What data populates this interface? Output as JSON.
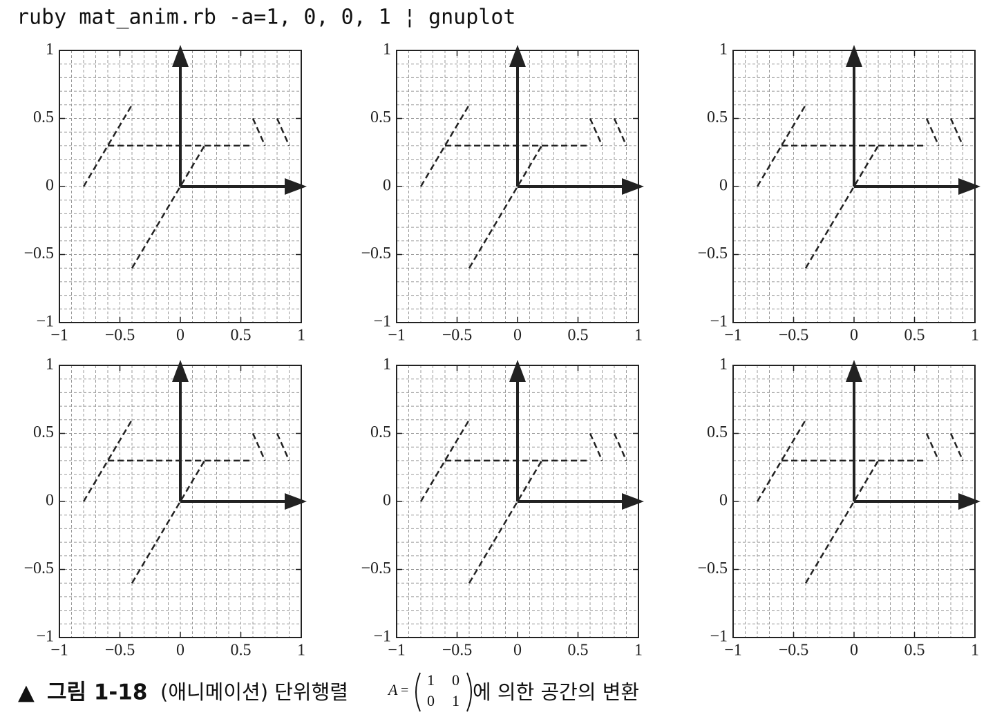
{
  "header": {
    "command": "ruby mat_anim.rb -a=1, 0, 0, 1 ¦ gnuplot"
  },
  "chart_data": [
    {
      "type": "line",
      "xlim": [
        -1,
        1
      ],
      "ylim": [
        -1,
        1
      ],
      "grid": true,
      "minor_step": 0.1,
      "color": "#222222",
      "xticks": [
        {
          "value": -1,
          "label": "−1"
        },
        {
          "value": -0.5,
          "label": "−0.5"
        },
        0,
        0.5,
        1
      ],
      "yticks": [
        {
          "value": -1,
          "label": "−1"
        },
        {
          "value": -0.5,
          "label": "−0.5"
        },
        0,
        0.5,
        1
      ],
      "series": [
        {
          "style": "dashed",
          "x": [
            -0.8,
            -0.4
          ],
          "values": [
            0,
            0.6
          ]
        },
        {
          "style": "dashed",
          "x": [
            -0.6,
            0.6
          ],
          "values": [
            0.3,
            0.3
          ]
        },
        {
          "style": "dashed",
          "x": [
            -0.4,
            0.2
          ],
          "values": [
            -0.6,
            0.3
          ]
        },
        {
          "style": "dashed",
          "x": [
            0.6,
            0.7
          ],
          "values": [
            0.5,
            0.3
          ]
        },
        {
          "style": "dashed",
          "x": [
            0.8,
            0.9
          ],
          "values": [
            0.5,
            0.3
          ]
        },
        {
          "style": "arrow",
          "x": [
            0,
            1
          ],
          "values": [
            0,
            0
          ]
        },
        {
          "style": "arrow",
          "x": [
            0,
            0
          ],
          "values": [
            0,
            1
          ]
        }
      ]
    },
    {
      "type": "line",
      "xlim": [
        -1,
        1
      ],
      "ylim": [
        -1,
        1
      ],
      "grid": true,
      "minor_step": 0.1,
      "color": "#222222",
      "xticks": [
        {
          "value": -1,
          "label": "−1"
        },
        {
          "value": -0.5,
          "label": "−0.5"
        },
        0,
        0.5,
        1
      ],
      "yticks": [
        {
          "value": -1,
          "label": "−1"
        },
        {
          "value": -0.5,
          "label": "−0.5"
        },
        0,
        0.5,
        1
      ],
      "series": [
        {
          "style": "dashed",
          "x": [
            -0.8,
            -0.4
          ],
          "values": [
            0,
            0.6
          ]
        },
        {
          "style": "dashed",
          "x": [
            -0.6,
            0.6
          ],
          "values": [
            0.3,
            0.3
          ]
        },
        {
          "style": "dashed",
          "x": [
            -0.4,
            0.2
          ],
          "values": [
            -0.6,
            0.3
          ]
        },
        {
          "style": "dashed",
          "x": [
            0.6,
            0.7
          ],
          "values": [
            0.5,
            0.3
          ]
        },
        {
          "style": "dashed",
          "x": [
            0.8,
            0.9
          ],
          "values": [
            0.5,
            0.3
          ]
        },
        {
          "style": "arrow",
          "x": [
            0,
            1
          ],
          "values": [
            0,
            0
          ]
        },
        {
          "style": "arrow",
          "x": [
            0,
            0
          ],
          "values": [
            0,
            1
          ]
        }
      ]
    },
    {
      "type": "line",
      "xlim": [
        -1,
        1
      ],
      "ylim": [
        -1,
        1
      ],
      "grid": true,
      "minor_step": 0.1,
      "color": "#222222",
      "xticks": [
        {
          "value": -1,
          "label": "−1"
        },
        {
          "value": -0.5,
          "label": "−0.5"
        },
        0,
        0.5,
        1
      ],
      "yticks": [
        {
          "value": -1,
          "label": "−1"
        },
        {
          "value": -0.5,
          "label": "−0.5"
        },
        0,
        0.5,
        1
      ],
      "series": [
        {
          "style": "dashed",
          "x": [
            -0.8,
            -0.4
          ],
          "values": [
            0,
            0.6
          ]
        },
        {
          "style": "dashed",
          "x": [
            -0.6,
            0.6
          ],
          "values": [
            0.3,
            0.3
          ]
        },
        {
          "style": "dashed",
          "x": [
            -0.4,
            0.2
          ],
          "values": [
            -0.6,
            0.3
          ]
        },
        {
          "style": "dashed",
          "x": [
            0.6,
            0.7
          ],
          "values": [
            0.5,
            0.3
          ]
        },
        {
          "style": "dashed",
          "x": [
            0.8,
            0.9
          ],
          "values": [
            0.5,
            0.3
          ]
        },
        {
          "style": "arrow",
          "x": [
            0,
            1
          ],
          "values": [
            0,
            0
          ]
        },
        {
          "style": "arrow",
          "x": [
            0,
            0
          ],
          "values": [
            0,
            1
          ]
        }
      ]
    },
    {
      "type": "line",
      "xlim": [
        -1,
        1
      ],
      "ylim": [
        -1,
        1
      ],
      "grid": true,
      "minor_step": 0.1,
      "color": "#222222",
      "xticks": [
        {
          "value": -1,
          "label": "−1"
        },
        {
          "value": -0.5,
          "label": "−0.5"
        },
        0,
        0.5,
        1
      ],
      "yticks": [
        {
          "value": -1,
          "label": "−1"
        },
        {
          "value": -0.5,
          "label": "−0.5"
        },
        0,
        0.5,
        1
      ],
      "series": [
        {
          "style": "dashed",
          "x": [
            -0.8,
            -0.4
          ],
          "values": [
            0,
            0.6
          ]
        },
        {
          "style": "dashed",
          "x": [
            -0.6,
            0.6
          ],
          "values": [
            0.3,
            0.3
          ]
        },
        {
          "style": "dashed",
          "x": [
            -0.4,
            0.2
          ],
          "values": [
            -0.6,
            0.3
          ]
        },
        {
          "style": "dashed",
          "x": [
            0.6,
            0.7
          ],
          "values": [
            0.5,
            0.3
          ]
        },
        {
          "style": "dashed",
          "x": [
            0.8,
            0.9
          ],
          "values": [
            0.5,
            0.3
          ]
        },
        {
          "style": "arrow",
          "x": [
            0,
            1
          ],
          "values": [
            0,
            0
          ]
        },
        {
          "style": "arrow",
          "x": [
            0,
            0
          ],
          "values": [
            0,
            1
          ]
        }
      ]
    },
    {
      "type": "line",
      "xlim": [
        -1,
        1
      ],
      "ylim": [
        -1,
        1
      ],
      "grid": true,
      "minor_step": 0.1,
      "color": "#222222",
      "xticks": [
        {
          "value": -1,
          "label": "−1"
        },
        {
          "value": -0.5,
          "label": "−0.5"
        },
        0,
        0.5,
        1
      ],
      "yticks": [
        {
          "value": -1,
          "label": "−1"
        },
        {
          "value": -0.5,
          "label": "−0.5"
        },
        0,
        0.5,
        1
      ],
      "series": [
        {
          "style": "dashed",
          "x": [
            -0.8,
            -0.4
          ],
          "values": [
            0,
            0.6
          ]
        },
        {
          "style": "dashed",
          "x": [
            -0.6,
            0.6
          ],
          "values": [
            0.3,
            0.3
          ]
        },
        {
          "style": "dashed",
          "x": [
            -0.4,
            0.2
          ],
          "values": [
            -0.6,
            0.3
          ]
        },
        {
          "style": "dashed",
          "x": [
            0.6,
            0.7
          ],
          "values": [
            0.5,
            0.3
          ]
        },
        {
          "style": "dashed",
          "x": [
            0.8,
            0.9
          ],
          "values": [
            0.5,
            0.3
          ]
        },
        {
          "style": "arrow",
          "x": [
            0,
            1
          ],
          "values": [
            0,
            0
          ]
        },
        {
          "style": "arrow",
          "x": [
            0,
            0
          ],
          "values": [
            0,
            1
          ]
        }
      ]
    },
    {
      "type": "line",
      "xlim": [
        -1,
        1
      ],
      "ylim": [
        -1,
        1
      ],
      "grid": true,
      "minor_step": 0.1,
      "color": "#222222",
      "xticks": [
        {
          "value": -1,
          "label": "−1"
        },
        {
          "value": -0.5,
          "label": "−0.5"
        },
        0,
        0.5,
        1
      ],
      "yticks": [
        {
          "value": -1,
          "label": "−1"
        },
        {
          "value": -0.5,
          "label": "−0.5"
        },
        0,
        0.5,
        1
      ],
      "series": [
        {
          "style": "dashed",
          "x": [
            -0.8,
            -0.4
          ],
          "values": [
            0,
            0.6
          ]
        },
        {
          "style": "dashed",
          "x": [
            -0.6,
            0.6
          ],
          "values": [
            0.3,
            0.3
          ]
        },
        {
          "style": "dashed",
          "x": [
            -0.4,
            0.2
          ],
          "values": [
            -0.6,
            0.3
          ]
        },
        {
          "style": "dashed",
          "x": [
            0.6,
            0.7
          ],
          "values": [
            0.5,
            0.3
          ]
        },
        {
          "style": "dashed",
          "x": [
            0.8,
            0.9
          ],
          "values": [
            0.5,
            0.3
          ]
        },
        {
          "style": "arrow",
          "x": [
            0,
            1
          ],
          "values": [
            0,
            0
          ]
        },
        {
          "style": "arrow",
          "x": [
            0,
            0
          ],
          "values": [
            0,
            1
          ]
        }
      ]
    }
  ],
  "caption": {
    "marker": "▲",
    "label": "그림 1-18",
    "text": "(애니메이션) 단위행렬",
    "symbol": "A",
    "equals": "=",
    "matrix": [
      [
        1,
        0
      ],
      [
        0,
        1
      ]
    ],
    "suffix": "에 의한 공간의 변환"
  }
}
